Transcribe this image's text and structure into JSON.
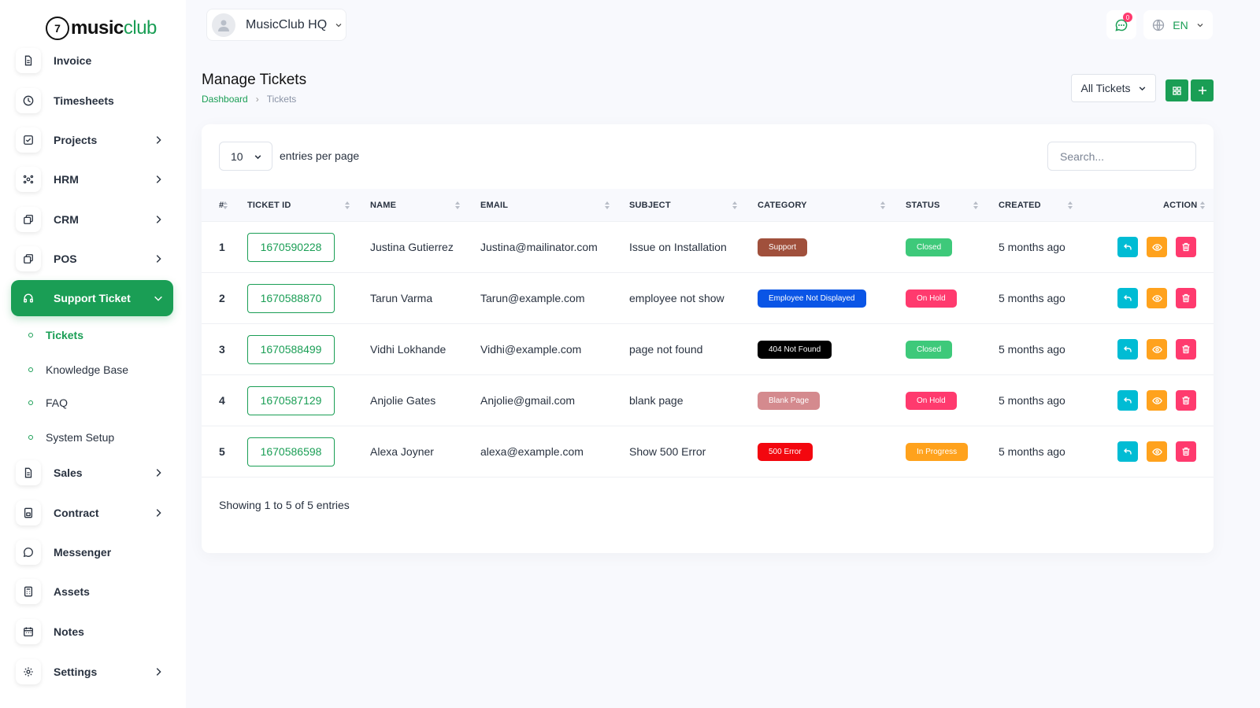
{
  "brand": {
    "mark": "7",
    "word1": "music",
    "word2": "club"
  },
  "sidebar": {
    "items": [
      {
        "label": "Invoice",
        "icon": "file-icon",
        "chevron": false
      },
      {
        "label": "Timesheets",
        "icon": "clock-icon",
        "chevron": false
      },
      {
        "label": "Projects",
        "icon": "checkbox-icon",
        "chevron": true
      },
      {
        "label": "HRM",
        "icon": "users-icon",
        "chevron": true
      },
      {
        "label": "CRM",
        "icon": "layers-icon",
        "chevron": true
      },
      {
        "label": "POS",
        "icon": "layers-icon",
        "chevron": true
      },
      {
        "label": "Support Ticket",
        "icon": "headphones-icon",
        "chevron": true,
        "active": true
      },
      {
        "label": "Sales",
        "icon": "file-icon",
        "chevron": true
      },
      {
        "label": "Contract",
        "icon": "device-icon",
        "chevron": true
      },
      {
        "label": "Messenger",
        "icon": "message-icon",
        "chevron": false
      },
      {
        "label": "Assets",
        "icon": "calculator-icon",
        "chevron": false
      },
      {
        "label": "Notes",
        "icon": "calendar-icon",
        "chevron": false
      },
      {
        "label": "Settings",
        "icon": "gear-icon",
        "chevron": true
      }
    ],
    "sub_items": [
      {
        "label": "Tickets",
        "active": true
      },
      {
        "label": "Knowledge Base"
      },
      {
        "label": "FAQ"
      },
      {
        "label": "System Setup"
      }
    ]
  },
  "header": {
    "workspace": "MusicClub HQ",
    "notifications": "0",
    "language": "EN"
  },
  "page": {
    "title": "Manage Tickets",
    "breadcrumb_home": "Dashboard",
    "breadcrumb_sep": "›",
    "breadcrumb_current": "Tickets",
    "filter_label": "All Tickets"
  },
  "table": {
    "per_page": "10",
    "per_page_label": "entries per page",
    "search_placeholder": "Search...",
    "columns": [
      "#",
      "TICKET ID",
      "NAME",
      "EMAIL",
      "SUBJECT",
      "CATEGORY",
      "STATUS",
      "CREATED",
      "ACTION"
    ],
    "rows": [
      {
        "num": "1",
        "ticket_id": "1670590228",
        "name": "Justina Gutierrez",
        "email": "Justina@mailinator.com",
        "subject": "Issue on Installation",
        "category": "Support",
        "category_color": "#a0503c",
        "status": "Closed",
        "status_color": "#3ec97a",
        "created": "5 months ago"
      },
      {
        "num": "2",
        "ticket_id": "1670588870",
        "name": "Tarun Varma",
        "email": "Tarun@example.com",
        "subject": "employee not show",
        "category": "Employee Not Displayed",
        "category_color": "#0a55e6",
        "status": "On Hold",
        "status_color": "#ff3a6e",
        "created": "5 months ago"
      },
      {
        "num": "3",
        "ticket_id": "1670588499",
        "name": "Vidhi Lokhande",
        "email": "Vidhi@example.com",
        "subject": "page not found",
        "category": "404 Not Found",
        "category_color": "#000000",
        "status": "Closed",
        "status_color": "#3ec97a",
        "created": "5 months ago"
      },
      {
        "num": "4",
        "ticket_id": "1670587129",
        "name": "Anjolie Gates",
        "email": "Anjolie@gmail.com",
        "subject": "blank page",
        "category": "Blank Page",
        "category_color": "#d48a8e",
        "status": "On Hold",
        "status_color": "#ff3a6e",
        "created": "5 months ago"
      },
      {
        "num": "5",
        "ticket_id": "1670586598",
        "name": "Alexa Joyner",
        "email": "alexa@example.com",
        "subject": "Show 500 Error",
        "category": "500 Error",
        "category_color": "#f3070f",
        "status": "In Progress",
        "status_color": "#ffa21d",
        "created": "5 months ago"
      }
    ],
    "showing": "Showing 1 to 5 of 5 entries"
  },
  "colors": {
    "accent": "#1a9e55",
    "reply": "#00bcd4",
    "view": "#ffa21d",
    "delete": "#ff3a6e"
  }
}
